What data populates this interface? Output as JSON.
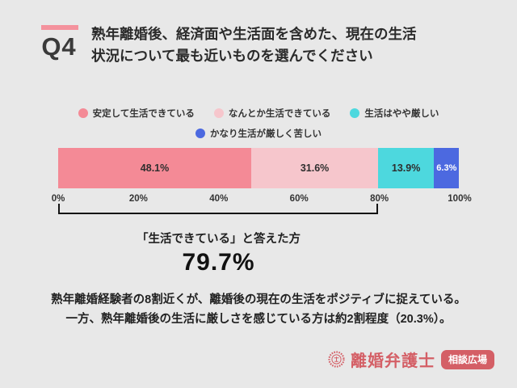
{
  "page": {
    "background": "#e8e8e8"
  },
  "header": {
    "q_label": "Q4",
    "accent_color": "#f4929d",
    "title_line1": "熟年離婚後、経済面や生活面を含めた、現在の生活",
    "title_line2": "状況について最も近いものを選んでください"
  },
  "legend": {
    "row1": [
      {
        "label": "安定して生活できている",
        "color": "#f48a96"
      },
      {
        "label": "なんとか生活できている",
        "color": "#f6c6cc"
      },
      {
        "label": "生活はやや厳しい",
        "color": "#4dd8de"
      }
    ],
    "row2": [
      {
        "label": "かなり生活が厳しく苦しい",
        "color": "#4c69e0"
      }
    ]
  },
  "chart_data": {
    "type": "bar",
    "orientation": "horizontal-stacked",
    "categories": [
      "安定して生活できている",
      "なんとか生活できている",
      "生活はやや厳しい",
      "かなり生活が厳しく苦しい"
    ],
    "values": [
      48.1,
      31.6,
      13.9,
      6.3
    ],
    "value_labels": [
      "48.1%",
      "31.6%",
      "13.9%",
      "6.3%"
    ],
    "colors": [
      "#f48a96",
      "#f6c6cc",
      "#4dd8de",
      "#4c69e0"
    ],
    "x_ticks": [
      "0%",
      "20%",
      "40%",
      "60%",
      "80%",
      "100%"
    ],
    "xlim": [
      0,
      100
    ],
    "grid": false,
    "legend_position": "top"
  },
  "highlight": {
    "bracket_span_pct": 79.7,
    "caption": "「生活できている」と答えた方",
    "value": "79.7%"
  },
  "summary": {
    "line1": "熟年離婚経験者の8割近くが、離婚後の現在の生活をポジティブに捉えている。",
    "line2": "一方、熟年離婚後の生活に厳しさを感じている方は約2割程度（20.3%）。"
  },
  "logo": {
    "seal_icon": "stamp-seal-icon",
    "brand": "離婚弁護士",
    "badge": "相談広場",
    "color": "#d45f66"
  }
}
